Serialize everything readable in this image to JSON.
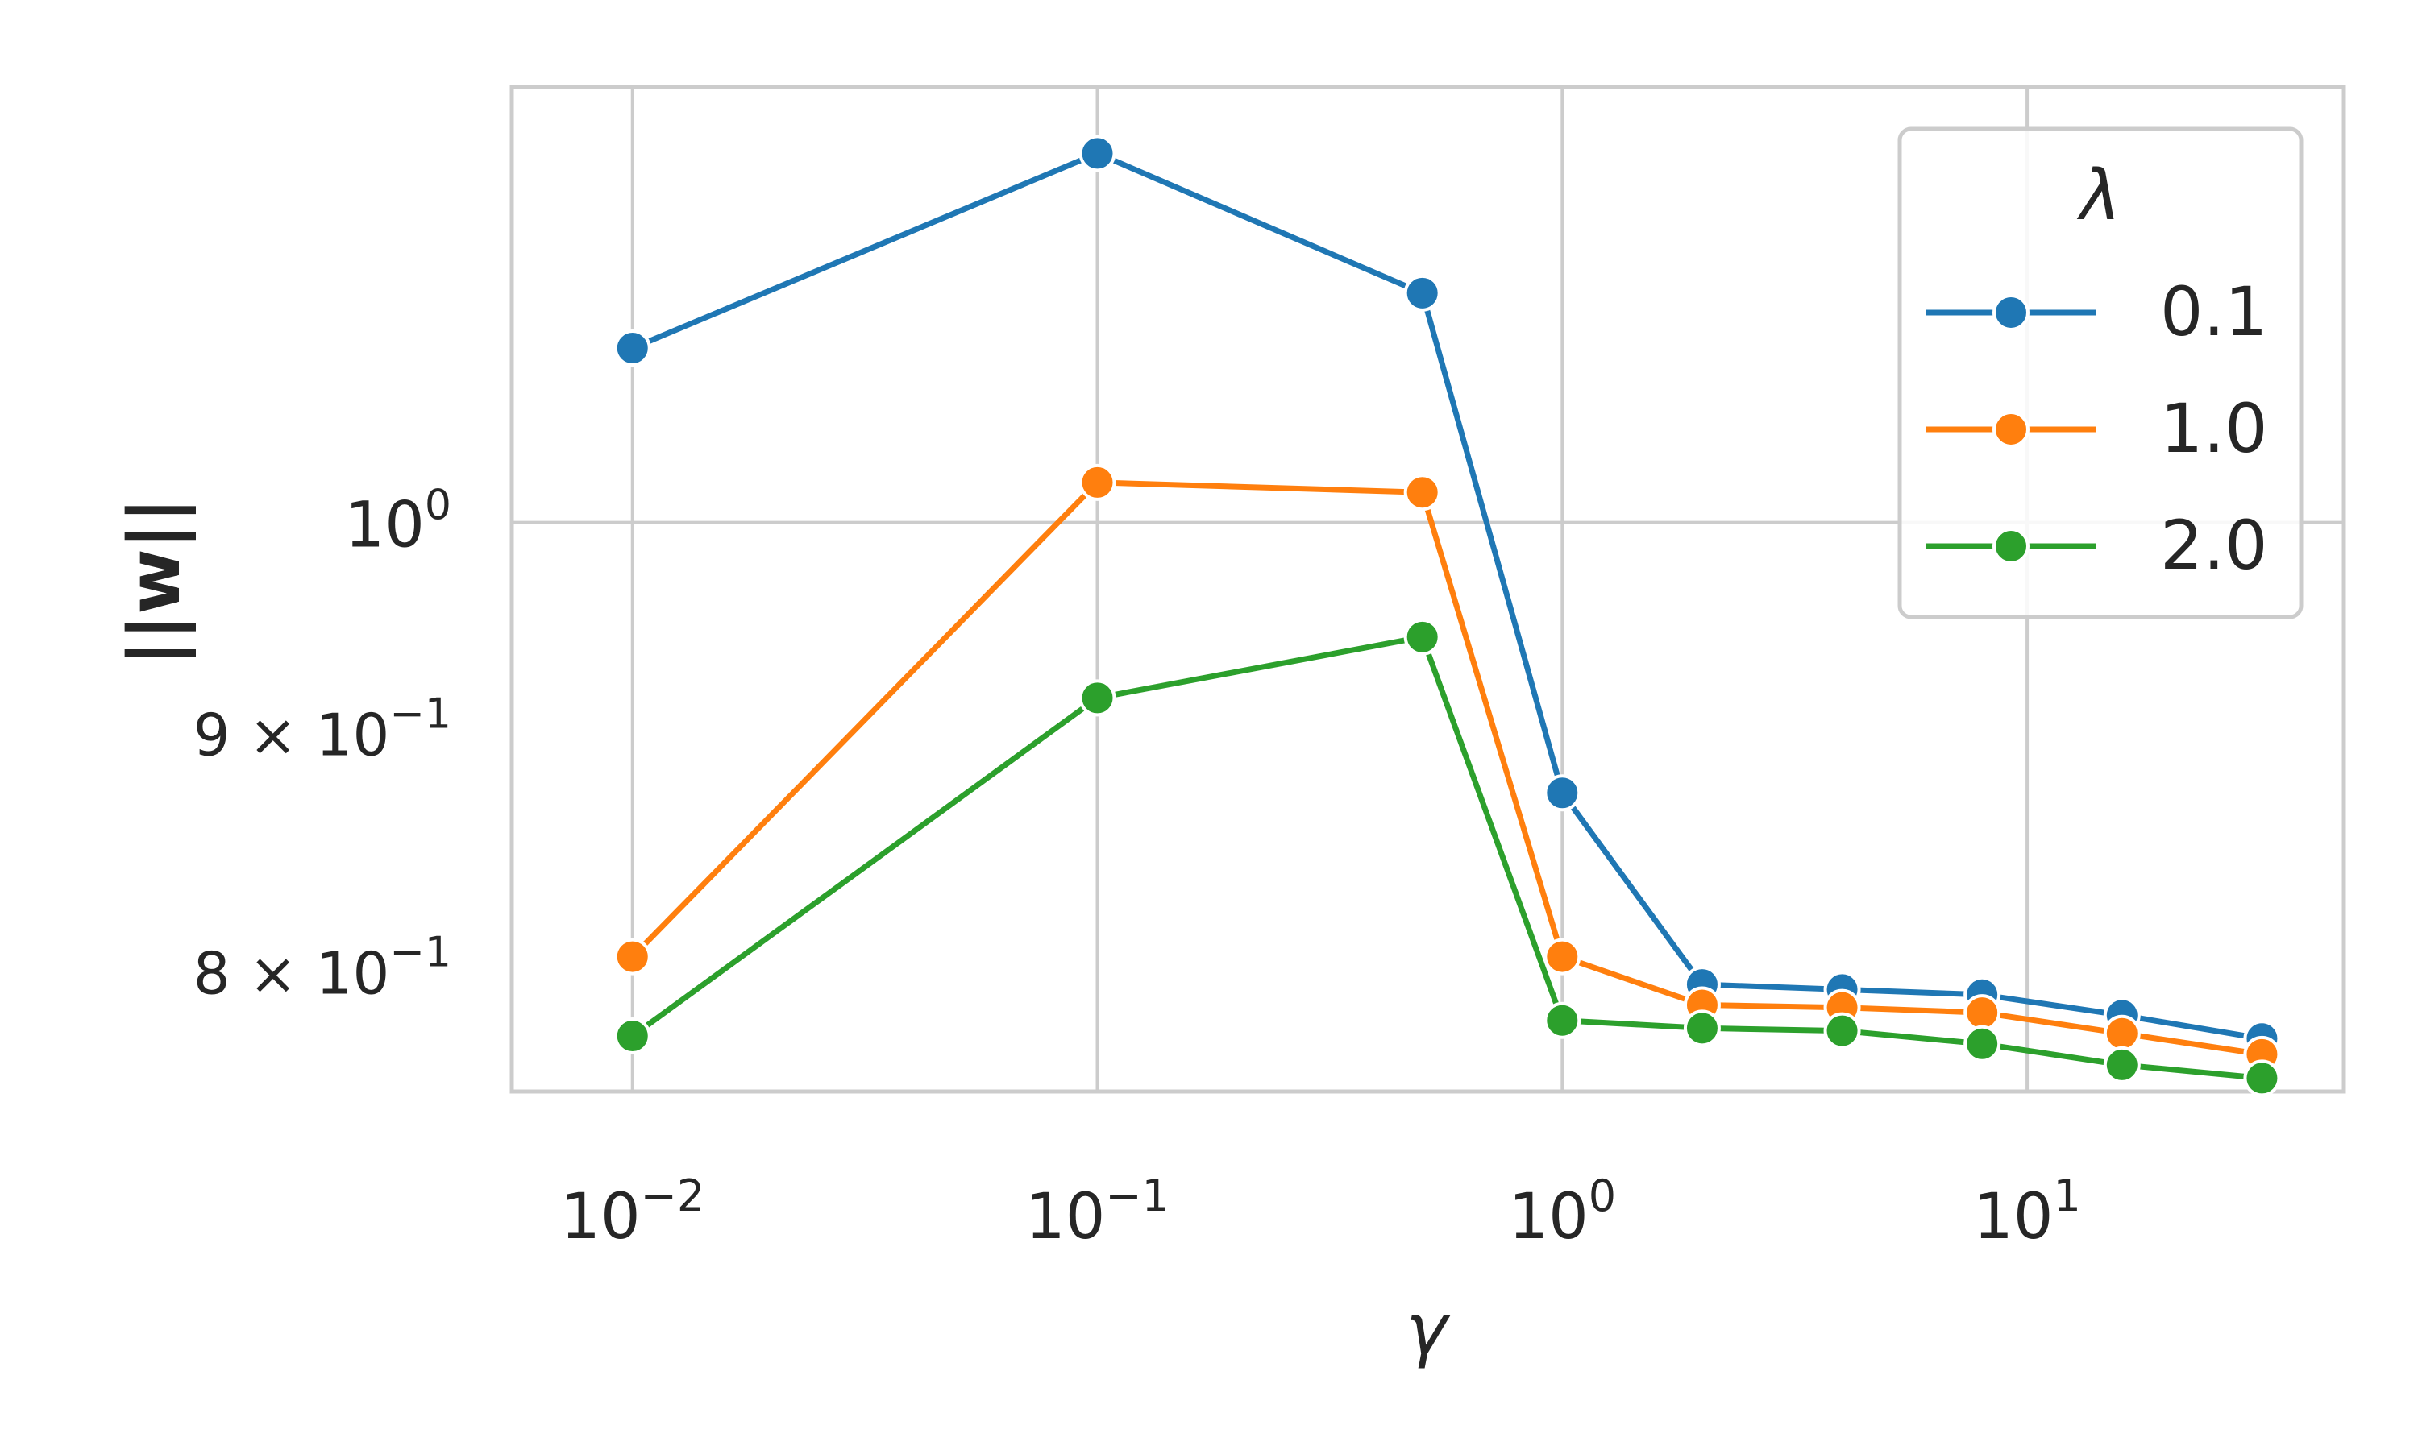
{
  "chart_data": {
    "type": "line",
    "title": "",
    "xlabel": "γ",
    "ylabel": "||w||",
    "xscale": "log",
    "yscale": "log",
    "xlim": [
      0.0055,
      48
    ],
    "ylim": [
      0.755,
      1.24
    ],
    "grid": true,
    "legend": {
      "title": "λ",
      "placement": "top-right"
    },
    "x_ticks": [
      {
        "value": 0.01,
        "base": "10",
        "exp": "−2"
      },
      {
        "value": 0.1,
        "base": "10",
        "exp": "−1"
      },
      {
        "value": 1,
        "base": "10",
        "exp": "0"
      },
      {
        "value": 10,
        "base": "10",
        "exp": "1"
      }
    ],
    "y_ticks": [
      {
        "value": 1.0,
        "mant": "",
        "base": "10",
        "exp": "0"
      },
      {
        "value": 0.9,
        "mant": "9 × ",
        "base": "10",
        "exp": "−1"
      },
      {
        "value": 0.8,
        "mant": "8 × ",
        "base": "10",
        "exp": "−1"
      }
    ],
    "x": [
      0.01,
      0.1,
      0.5,
      1,
      2,
      4,
      8,
      16,
      32
    ],
    "series": [
      {
        "name": "0.1",
        "color": "#1f77b4",
        "values": [
          1.09,
          1.2,
          1.12,
          0.875,
          0.796,
          0.794,
          0.792,
          0.784,
          0.775
        ]
      },
      {
        "name": "1.0",
        "color": "#ff7f0e",
        "values": [
          0.807,
          1.02,
          1.015,
          0.807,
          0.788,
          0.787,
          0.785,
          0.777,
          0.769
        ]
      },
      {
        "name": "2.0",
        "color": "#2ca02c",
        "values": [
          0.776,
          0.917,
          0.945,
          0.782,
          0.779,
          0.778,
          0.773,
          0.765,
          0.76
        ]
      }
    ]
  }
}
